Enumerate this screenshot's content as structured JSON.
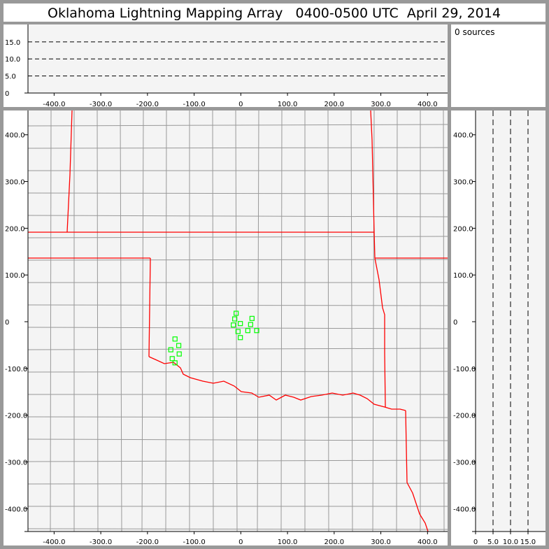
{
  "title": "Oklahoma Lightning Mapping Array   0400-0500 UTC  April 29, 2014",
  "source_count": "0 sources",
  "colors": {
    "background": "#999999",
    "plot_bg": "#f4f4f4",
    "county": "#999999",
    "state_border": "#ff0000",
    "station": "#00ff00"
  },
  "chart_data": [
    {
      "type": "scatter",
      "panel": "altitude-vs-east-west",
      "x_ticks": [
        "-400.0",
        "-300.0",
        "-200.0",
        "-100.0",
        "0",
        "100.0",
        "200.0",
        "300.0",
        "400.0"
      ],
      "x_tick_values": [
        -400,
        -300,
        -200,
        -100,
        0,
        100,
        200,
        300,
        400
      ],
      "y_ticks": [
        "0",
        "5.0",
        "10.0",
        "15.0"
      ],
      "y_tick_values": [
        0,
        5,
        10,
        15
      ],
      "xlim": [
        -456,
        443
      ],
      "ylim": [
        0,
        20.1
      ],
      "grid": "dashed horizontal at 5, 10, 15",
      "points": []
    },
    {
      "type": "map",
      "panel": "plan-view",
      "x_ticks": [
        "-400.0",
        "-300.0",
        "-200.0",
        "-100.0",
        "0",
        "100.0",
        "200.0",
        "300.0",
        "400.0"
      ],
      "x_tick_values": [
        -400,
        -300,
        -200,
        -100,
        0,
        100,
        200,
        300,
        400
      ],
      "y_ticks": [
        "400.0",
        "300.0",
        "200.0",
        "100.0",
        "0",
        "-100.0",
        "-200.0",
        "-300.0",
        "-400.0"
      ],
      "y_tick_values": [
        400,
        300,
        200,
        100,
        0,
        -100,
        -200,
        -300,
        -400
      ],
      "xlim": [
        -456,
        443
      ],
      "ylim": [
        -449,
        452
      ],
      "stations": [
        [
          -10,
          18
        ],
        [
          -13,
          6
        ],
        [
          -16,
          -7
        ],
        [
          -1,
          -4
        ],
        [
          24,
          7
        ],
        [
          21,
          -6
        ],
        [
          -6,
          -21
        ],
        [
          15,
          -19
        ],
        [
          34,
          -19
        ],
        [
          -1,
          -34
        ],
        [
          -141,
          -37
        ],
        [
          -133,
          -51
        ],
        [
          -150,
          -60
        ],
        [
          -132,
          -69
        ],
        [
          -147,
          -79
        ],
        [
          -141,
          -88
        ]
      ]
    },
    {
      "type": "scatter",
      "panel": "north-south-vs-altitude",
      "x_ticks": [
        "0",
        "5.0",
        "10.0",
        "15.0"
      ],
      "x_tick_values": [
        0,
        5,
        10,
        15
      ],
      "y_ticks": [
        "400.0",
        "300.0",
        "200.0",
        "100.0",
        "0",
        "-100.0",
        "-200.0",
        "-300.0",
        "-400.0"
      ],
      "y_tick_values": [
        400,
        300,
        200,
        100,
        0,
        -100,
        -200,
        -300,
        -400
      ],
      "xlim": [
        0,
        20
      ],
      "ylim": [
        -449,
        452
      ],
      "grid": "dashed vertical at 5, 10, 15",
      "points": []
    }
  ]
}
